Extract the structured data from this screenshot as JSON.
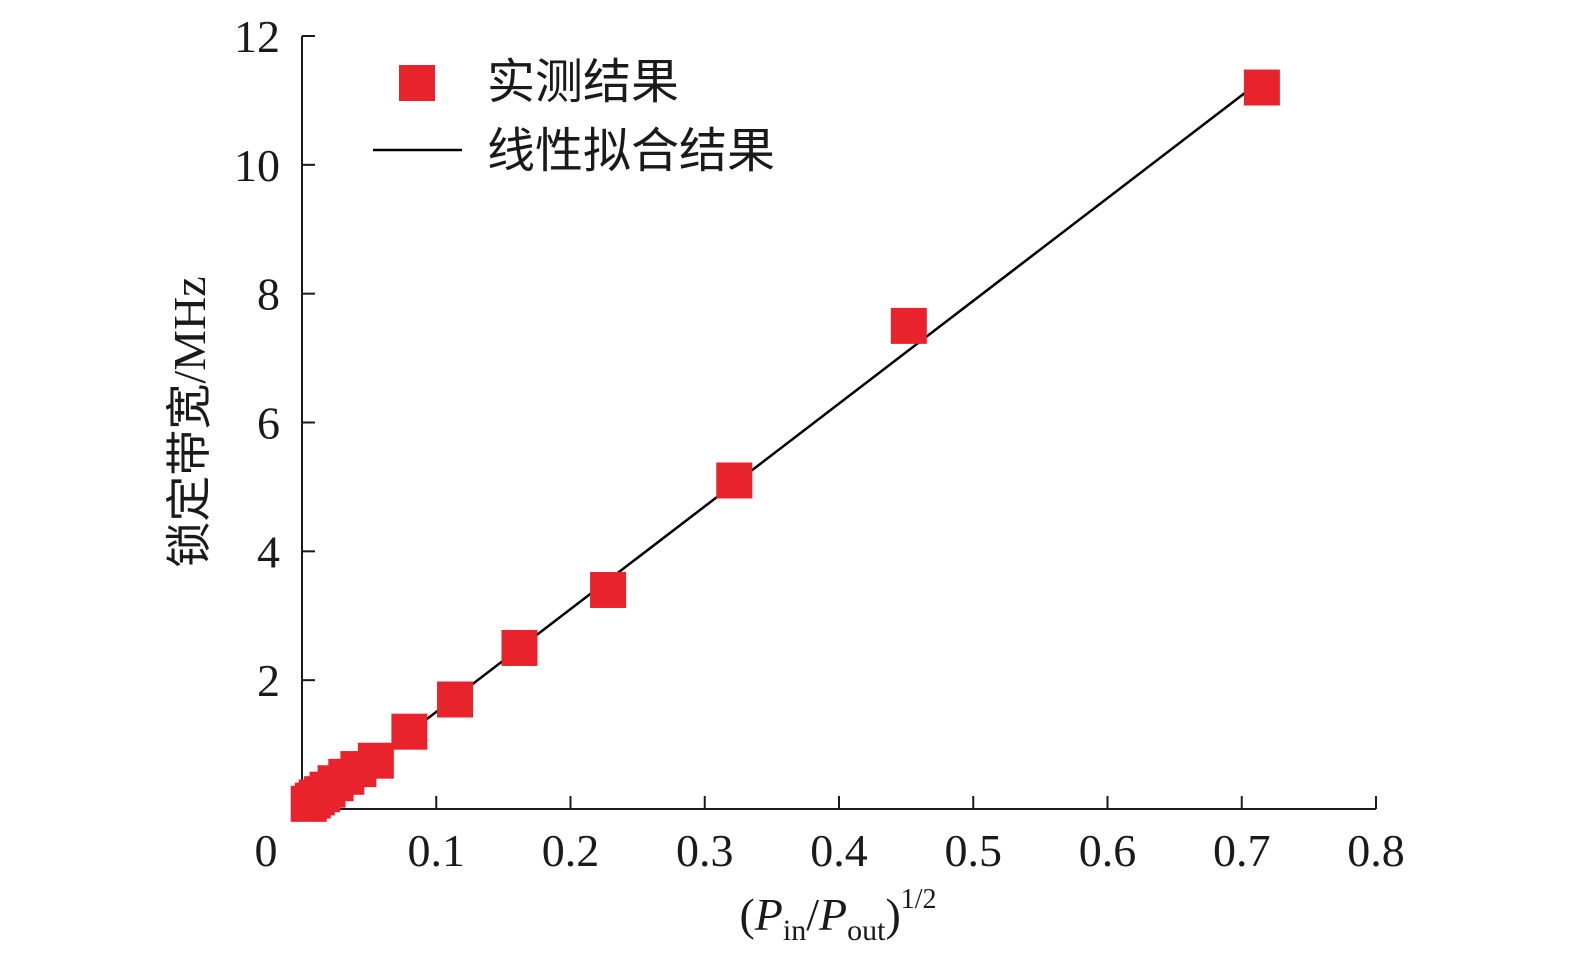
{
  "chart_data": {
    "type": "scatter",
    "xlabel": {
      "open": "(",
      "p1": "P",
      "sub1": "in",
      "slash": "/",
      "p2": "P",
      "sub2": "out",
      "close": ")",
      "sup": "1/2"
    },
    "ylabel": "锁定带宽/MHz",
    "xlim": [
      0,
      0.8
    ],
    "ylim": [
      0,
      12
    ],
    "xticks": [
      0,
      0.1,
      0.2,
      0.3,
      0.4,
      0.5,
      0.6,
      0.7,
      0.8
    ],
    "xtick_labels": [
      "0",
      "0.1",
      "0.2",
      "0.3",
      "0.4",
      "0.5",
      "0.6",
      "0.7",
      "0.8"
    ],
    "yticks": [
      2,
      4,
      6,
      8,
      10,
      12
    ],
    "ytick_labels": [
      "2",
      "4",
      "6",
      "8",
      "10",
      "12"
    ],
    "origin_label": "0",
    "grid": false,
    "legend_position": "top-left",
    "series": [
      {
        "name": "实测结果",
        "kind": "scatter",
        "marker": "square",
        "color": "#e8232b",
        "x": [
          0.005,
          0.008,
          0.011,
          0.015,
          0.019,
          0.025,
          0.033,
          0.042,
          0.055,
          0.08,
          0.114,
          0.162,
          0.228,
          0.322,
          0.452,
          0.715
        ],
        "y": [
          0.08,
          0.13,
          0.18,
          0.23,
          0.3,
          0.4,
          0.5,
          0.62,
          0.75,
          1.2,
          1.7,
          2.5,
          3.4,
          5.1,
          7.5,
          11.2
        ]
      },
      {
        "name": "线性拟合结果",
        "kind": "line",
        "color": "#000000",
        "x": [
          0.013,
          0.717
        ],
        "y": [
          0.12,
          11.35
        ]
      }
    ]
  }
}
